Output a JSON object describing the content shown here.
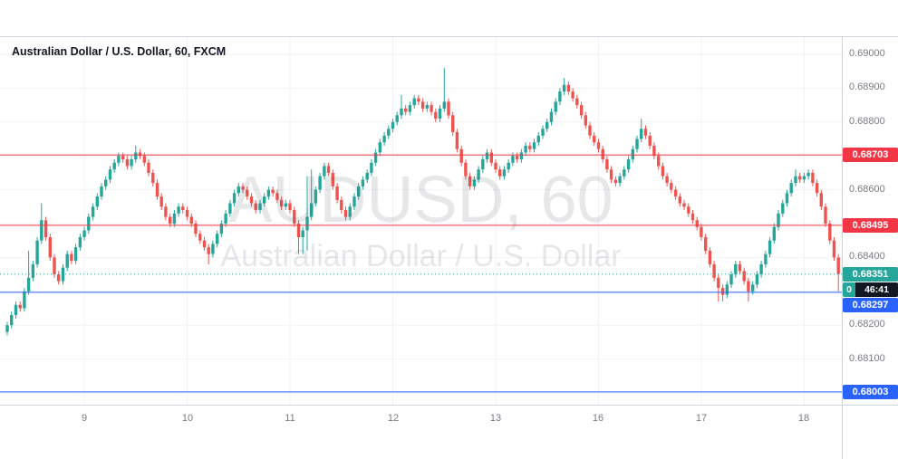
{
  "legend": {
    "title": "Australian Dollar / U.S. Dollar, 60, FXCM"
  },
  "watermark": {
    "line1": "AUDUSD, 60",
    "line2": "Australian Dollar / U.S. Dollar"
  },
  "colors": {
    "background": "#ffffff",
    "grid": "#f0f2f6",
    "border": "#d1d4dc",
    "axis_text": "#787b86",
    "legend_text": "#131722",
    "up": "#26a69a",
    "down": "#ef5350",
    "resistance_red": "#f23645",
    "support_blue": "#2962ff",
    "current_teal": "#26a69a",
    "countdown_bg": "#131722"
  },
  "chart_data": {
    "type": "candlestick",
    "title": "Australian Dollar / U.S. Dollar, 60, FXCM",
    "symbol": "AUDUSD",
    "interval": "60",
    "exchange": "FXCM",
    "price_base": 0.68,
    "pip_size": 0.0001,
    "ylim": [
      0.6797,
      0.6905
    ],
    "up_color": "#26a69a",
    "down_color": "#ef5350",
    "first_open_pips": 18,
    "default_wick_pips": 1,
    "closes_pips": [
      20,
      23,
      26,
      25,
      30,
      34,
      38,
      45,
      51,
      46,
      40,
      35,
      33,
      37,
      41,
      39,
      43,
      46,
      48,
      52,
      55,
      58,
      61,
      63,
      66,
      68,
      70,
      69,
      67,
      69,
      71,
      70,
      68,
      65,
      62,
      58,
      55,
      52,
      50,
      53,
      55,
      54,
      52,
      50,
      47,
      45,
      43,
      41,
      44,
      47,
      50,
      53,
      56,
      59,
      61,
      60,
      58,
      56,
      54,
      56,
      58,
      60,
      59,
      57,
      55,
      56,
      54,
      50,
      46,
      48,
      52,
      56,
      60,
      64,
      67,
      65,
      61,
      57,
      54,
      52,
      55,
      58,
      61,
      63,
      65,
      68,
      71,
      74,
      76,
      78,
      80,
      82,
      84,
      83,
      85,
      87,
      86,
      84,
      85,
      83,
      81,
      84,
      86,
      82,
      77,
      72,
      68,
      64,
      61,
      63,
      66,
      69,
      71,
      68,
      66,
      64,
      66,
      68,
      70,
      69,
      71,
      73,
      72,
      74,
      76,
      78,
      80,
      83,
      86,
      89,
      91,
      89,
      87,
      85,
      82,
      79,
      76,
      74,
      72,
      69,
      66,
      63,
      62,
      64,
      66,
      69,
      72,
      75,
      78,
      76,
      73,
      70,
      67,
      64,
      62,
      60,
      58,
      56,
      55,
      53,
      51,
      49,
      46,
      42,
      38,
      34,
      31,
      29,
      32,
      35,
      38,
      36,
      33,
      30,
      32,
      35,
      38,
      41,
      45,
      49,
      53,
      56,
      59,
      62,
      64,
      63,
      64,
      65,
      62,
      59,
      55,
      50,
      45,
      40,
      35.1
    ],
    "wick_overrides_pips": {
      "5": {
        "high": 42
      },
      "8": {
        "high": 56
      },
      "30": {
        "high": 73
      },
      "47": {
        "low": 38
      },
      "68": {
        "low": 41
      },
      "69": {
        "low": 41
      },
      "70": {
        "high": 64,
        "low": 42
      },
      "71": {
        "high": 66
      },
      "92": {
        "high": 88
      },
      "102": {
        "high": 96
      },
      "130": {
        "high": 93
      },
      "148": {
        "high": 81
      },
      "166": {
        "low": 27
      },
      "167": {
        "low": 27
      },
      "173": {
        "low": 27
      },
      "184": {
        "high": 66
      },
      "194": {
        "low": 30
      }
    },
    "bars_per_day": 24,
    "horizontal_lines": [
      {
        "name": "resistance-line-1",
        "price": 0.68703,
        "label": "0.68703",
        "color": "#f23645"
      },
      {
        "name": "resistance-line-2",
        "price": 0.68495,
        "label": "0.68495",
        "color": "#f23645"
      },
      {
        "name": "support-line-1",
        "price": 0.68297,
        "label": "0.68297",
        "color": "#2962ff",
        "stack_below_countdown": true
      },
      {
        "name": "support-line-2",
        "price": 0.68003,
        "label": "0.68003",
        "color": "#2962ff"
      }
    ],
    "current_price": {
      "value": 0.68351,
      "label": "0.68351",
      "color": "#26a69a",
      "style": "dotted"
    },
    "countdown": {
      "prefix": "0",
      "time": "46:41",
      "prefix_bg": "#26a69a",
      "bg": "#131722"
    },
    "grid_prices": [
      0.69,
      0.689,
      0.688,
      0.687,
      0.686,
      0.685,
      0.684,
      0.683,
      0.682,
      0.681,
      0.68
    ],
    "y_ticks": [
      {
        "label": "0.69000",
        "price": 0.69
      },
      {
        "label": "0.68900",
        "price": 0.689
      },
      {
        "label": "0.68800",
        "price": 0.688
      },
      {
        "label": "0.68600",
        "price": 0.686
      },
      {
        "label": "0.68400",
        "price": 0.684
      },
      {
        "label": "0.68200",
        "price": 0.682
      },
      {
        "label": "0.68100",
        "price": 0.681
      }
    ],
    "x_ticks": [
      {
        "label": "9",
        "bar": 18
      },
      {
        "label": "10",
        "bar": 42
      },
      {
        "label": "11",
        "bar": 66
      },
      {
        "label": "12",
        "bar": 90
      },
      {
        "label": "13",
        "bar": 114
      },
      {
        "label": "16",
        "bar": 138
      },
      {
        "label": "17",
        "bar": 162
      },
      {
        "label": "18",
        "bar": 186
      }
    ]
  }
}
